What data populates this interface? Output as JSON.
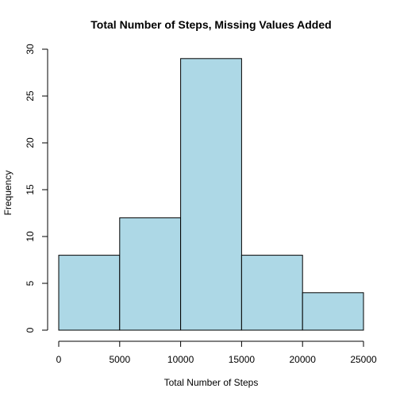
{
  "chart_data": {
    "type": "bar",
    "title": "Total Number of Steps, Missing Values Added",
    "xlabel": "Total Number of Steps",
    "ylabel": "Frequency",
    "bin_edges": [
      0,
      5000,
      10000,
      15000,
      20000,
      25000
    ],
    "values": [
      8,
      12,
      29,
      8,
      4
    ],
    "xlim": [
      0,
      25000
    ],
    "ylim": [
      0,
      30
    ],
    "x_ticks": [
      0,
      5000,
      10000,
      15000,
      20000,
      25000
    ],
    "y_ticks": [
      0,
      5,
      10,
      15,
      20,
      25,
      30
    ],
    "bar_color": "#add8e6",
    "border_color": "#000000",
    "grid": false,
    "legend": "none"
  }
}
